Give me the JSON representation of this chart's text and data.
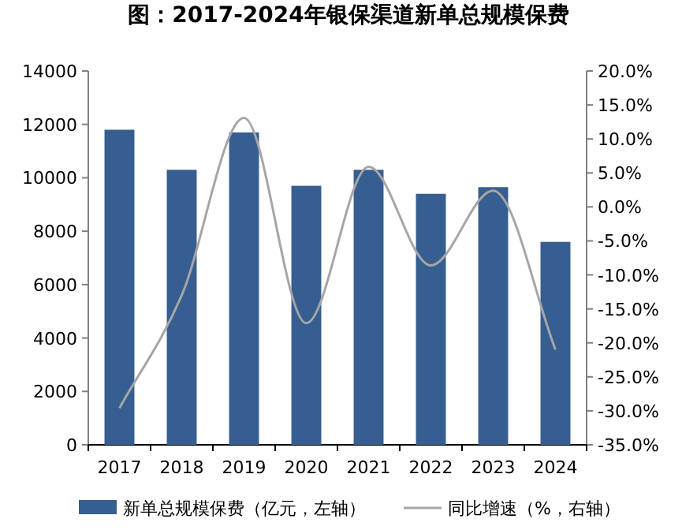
{
  "chart_data": {
    "type": "bar",
    "title": "图：2017-2024年银保渠道新单总规模保费",
    "categories": [
      "2017",
      "2018",
      "2019",
      "2020",
      "2021",
      "2022",
      "2023",
      "2024"
    ],
    "series": [
      {
        "name": "新单总规模保费（亿元，左轴）",
        "color": "#365e91",
        "values": [
          11800,
          10300,
          11700,
          9700,
          10300,
          9400,
          9650,
          7600
        ]
      },
      {
        "name": "同比增速（%，右轴）",
        "type": "line",
        "axis": "y2",
        "color": "#a6a6a6",
        "values": [
          -29.6,
          -13,
          13.1,
          -17.1,
          5.9,
          -8.6,
          2.4,
          -21
        ]
      }
    ],
    "ylim": [
      0,
      14000
    ],
    "yticks": [
      0,
      2000,
      4000,
      6000,
      8000,
      10000,
      12000,
      14000
    ],
    "y2lim": [
      -35,
      20
    ],
    "y2ticks": [
      {
        "value": -35,
        "label": "-35.0%"
      },
      {
        "value": -30,
        "label": "-30.0%"
      },
      {
        "value": -25,
        "label": "-25.0%"
      },
      {
        "value": -20,
        "label": "-20.0%"
      },
      {
        "value": -15,
        "label": "-15.0%"
      },
      {
        "value": -10,
        "label": "-10.0%"
      },
      {
        "value": -5,
        "label": "-5.0%"
      },
      {
        "value": 0,
        "label": "0.0%"
      },
      {
        "value": 5,
        "label": "5.0%"
      },
      {
        "value": 10,
        "label": "10.0%"
      },
      {
        "value": 15,
        "label": "15.0%"
      },
      {
        "value": 20,
        "label": "20.0%"
      }
    ],
    "legend": "bottom",
    "grid": false
  }
}
